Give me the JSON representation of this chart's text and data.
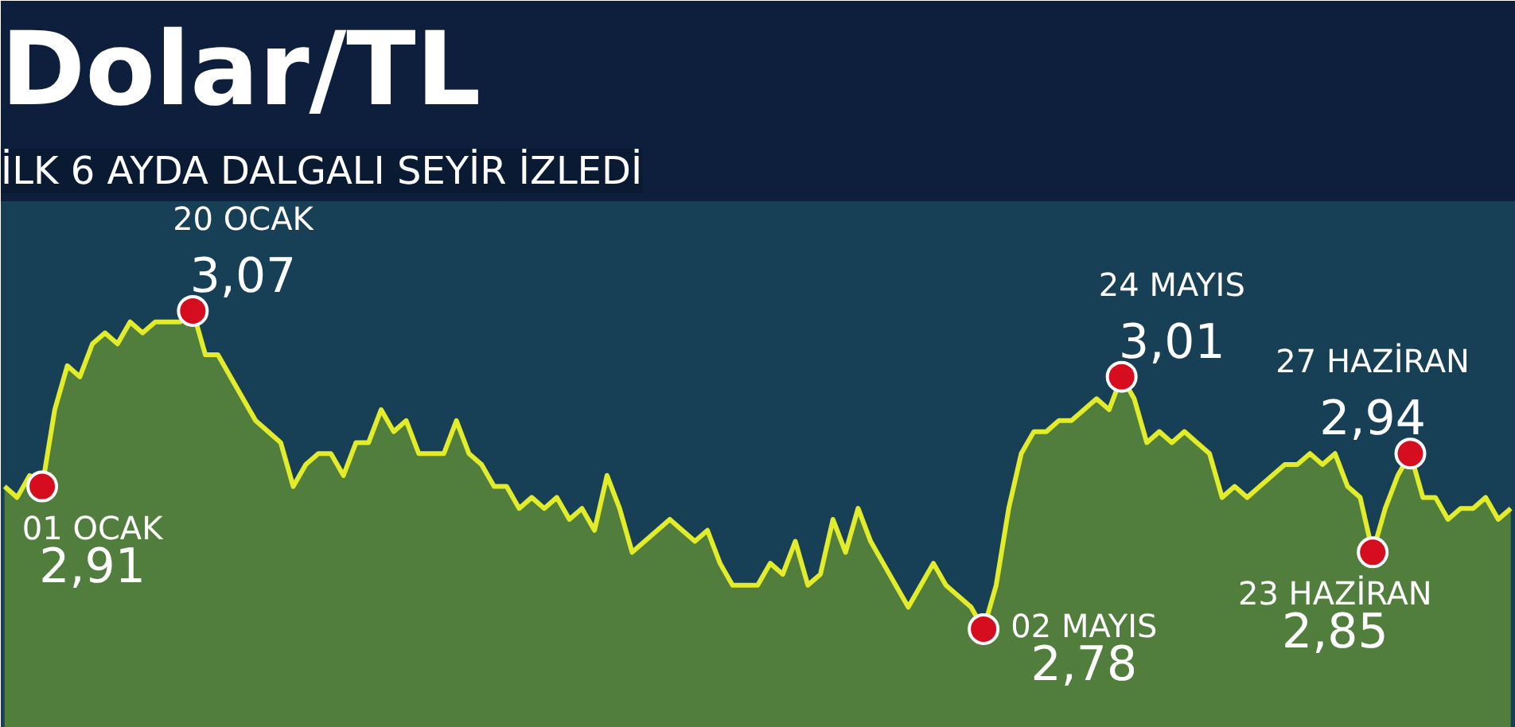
{
  "chart_data": {
    "type": "area",
    "title": "Dolar/TL",
    "subtitle": "İLK 6 AYDA DALGALI SEYİR İZLEDİ",
    "categories": [
      null,
      null,
      null,
      null,
      null,
      null,
      null,
      null,
      null,
      null,
      null,
      null,
      null,
      null,
      null,
      null,
      null,
      null,
      null,
      null,
      null,
      null,
      null,
      null,
      null,
      null,
      null,
      null,
      null,
      null,
      null,
      null,
      null,
      null,
      null,
      null,
      null,
      null,
      null,
      null,
      null,
      null,
      null,
      null,
      null,
      null,
      null,
      null,
      null,
      null,
      null,
      null,
      null,
      null,
      null,
      null,
      null,
      null,
      null,
      null,
      null,
      null,
      null,
      null,
      null,
      null,
      null,
      null,
      null,
      null,
      null,
      null,
      null,
      null,
      null,
      null,
      null,
      null,
      null,
      null,
      null,
      null,
      null,
      null,
      null,
      null,
      null,
      null,
      null,
      null,
      null,
      null,
      null,
      null,
      null,
      null,
      null,
      null,
      null,
      null,
      null,
      null,
      null,
      null,
      null,
      null,
      null,
      null,
      null,
      null,
      null,
      null,
      null,
      null,
      null,
      null,
      null,
      null,
      null,
      null,
      null
    ],
    "series": [
      {
        "color": "#e2ec2a",
        "values": [
          2.91,
          2.9,
          2.92,
          2.91,
          2.98,
          3.02,
          3.01,
          3.04,
          3.05,
          3.04,
          3.06,
          3.05,
          3.06,
          3.06,
          3.06,
          3.07,
          3.03,
          3.03,
          3.01,
          2.99,
          2.97,
          2.96,
          2.95,
          2.91,
          2.93,
          2.94,
          2.94,
          2.92,
          2.95,
          2.95,
          2.98,
          2.96,
          2.97,
          2.94,
          2.94,
          2.94,
          2.97,
          2.94,
          2.93,
          2.91,
          2.91,
          2.89,
          2.9,
          2.89,
          2.9,
          2.88,
          2.89,
          2.87,
          2.92,
          2.89,
          2.85,
          2.86,
          2.87,
          2.88,
          2.87,
          2.86,
          2.87,
          2.84,
          2.82,
          2.82,
          2.82,
          2.84,
          2.83,
          2.86,
          2.82,
          2.83,
          2.88,
          2.85,
          2.89,
          2.86,
          2.84,
          2.82,
          2.8,
          2.82,
          2.84,
          2.82,
          2.81,
          2.8,
          2.78,
          2.82,
          2.89,
          2.94,
          2.96,
          2.96,
          2.97,
          2.97,
          2.98,
          2.99,
          2.98,
          3.01,
          2.99,
          2.95,
          2.96,
          2.95,
          2.96,
          2.95,
          2.94,
          2.9,
          2.91,
          2.9,
          2.91,
          2.92,
          2.93,
          2.93,
          2.94,
          2.93,
          2.94,
          2.91,
          2.9,
          2.85,
          2.89,
          2.92,
          2.94,
          2.9,
          2.9,
          2.88,
          2.89,
          2.89,
          2.9,
          2.88,
          2.89
        ],
        "value_labels": [
          null,
          null,
          null,
          "2,91",
          null,
          null,
          null,
          null,
          null,
          null,
          null,
          null,
          null,
          null,
          null,
          "3,07",
          null,
          null,
          null,
          null,
          null,
          null,
          null,
          null,
          null,
          null,
          null,
          null,
          null,
          null,
          null,
          null,
          null,
          null,
          null,
          null,
          null,
          null,
          null,
          null,
          null,
          null,
          null,
          null,
          null,
          null,
          null,
          null,
          null,
          null,
          null,
          null,
          null,
          null,
          null,
          null,
          null,
          null,
          null,
          null,
          null,
          null,
          null,
          null,
          null,
          null,
          null,
          null,
          null,
          null,
          null,
          null,
          null,
          null,
          null,
          null,
          null,
          null,
          "2,78",
          null,
          null,
          null,
          null,
          null,
          null,
          null,
          null,
          null,
          null,
          "3,01",
          null,
          null,
          null,
          null,
          null,
          null,
          null,
          null,
          null,
          null,
          null,
          null,
          null,
          null,
          null,
          null,
          null,
          null,
          null,
          "2,85",
          null,
          null,
          "2,94",
          null,
          null,
          null,
          null,
          null,
          null,
          null,
          null
        ]
      }
    ],
    "annotations": [
      "01 OCAK",
      "20 OCAK",
      "02 MAYIS",
      "24 MAYIS",
      "23 HAZİRAN",
      "27 HAZİRAN"
    ],
    "ylim": [
      2.69,
      3.17
    ],
    "tick_labels": false,
    "grid": false
  }
}
